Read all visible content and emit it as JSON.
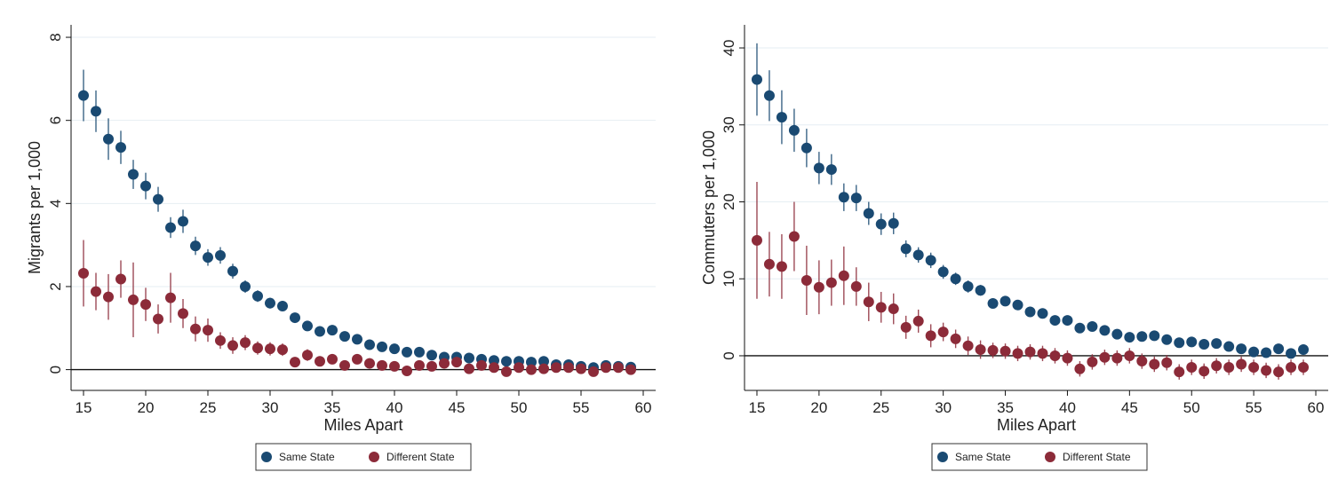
{
  "colors": {
    "same_state": "#1a4a72",
    "different_state": "#8c2b39",
    "grid": "#e6eef3"
  },
  "chart_data": [
    {
      "type": "scatter",
      "title": "",
      "xlabel": "Miles Apart",
      "ylabel": "Migrants per 1,000",
      "xlim": [
        14,
        61
      ],
      "ylim": [
        -0.5,
        8.3
      ],
      "x_ticks": [
        15,
        20,
        25,
        30,
        35,
        40,
        45,
        50,
        55,
        60
      ],
      "y_ticks": [
        0,
        2,
        4,
        6,
        8
      ],
      "grid": true,
      "legend": "bottom",
      "error_bars": true,
      "x": [
        15,
        16,
        17,
        18,
        19,
        20,
        21,
        22,
        23,
        24,
        25,
        26,
        27,
        28,
        29,
        30,
        31,
        32,
        33,
        34,
        35,
        36,
        37,
        38,
        39,
        40,
        41,
        42,
        43,
        44,
        45,
        46,
        47,
        48,
        49,
        50,
        51,
        52,
        53,
        54,
        55,
        56,
        57,
        58,
        59
      ],
      "series": [
        {
          "name": "Same State",
          "color": "#1a4a72",
          "values": [
            6.6,
            6.22,
            5.55,
            5.35,
            4.7,
            4.42,
            4.1,
            3.42,
            3.57,
            2.98,
            2.7,
            2.75,
            2.37,
            2.0,
            1.77,
            1.6,
            1.53,
            1.25,
            1.05,
            0.92,
            0.95,
            0.8,
            0.73,
            0.6,
            0.55,
            0.5,
            0.42,
            0.42,
            0.35,
            0.3,
            0.3,
            0.28,
            0.25,
            0.22,
            0.2,
            0.2,
            0.18,
            0.2,
            0.12,
            0.12,
            0.08,
            0.05,
            0.1,
            0.08,
            0.06
          ],
          "errors": [
            0.62,
            0.5,
            0.5,
            0.4,
            0.35,
            0.32,
            0.3,
            0.25,
            0.28,
            0.22,
            0.2,
            0.2,
            0.18,
            0.15,
            0.14,
            0.13,
            0.12,
            0.1,
            0.1,
            0.08,
            0.08,
            0.08,
            0.07,
            0.06,
            0.06,
            0.05,
            0.05,
            0.05,
            0.05,
            0.04,
            0.04,
            0.04,
            0.04,
            0.04,
            0.04,
            0.04,
            0.03,
            0.03,
            0.03,
            0.03,
            0.03,
            0.03,
            0.03,
            0.03,
            0.03
          ]
        },
        {
          "name": "Different State",
          "color": "#8c2b39",
          "values": [
            2.32,
            1.88,
            1.75,
            2.18,
            1.68,
            1.57,
            1.22,
            1.73,
            1.35,
            0.98,
            0.95,
            0.7,
            0.58,
            0.65,
            0.52,
            0.5,
            0.48,
            0.18,
            0.35,
            0.2,
            0.25,
            0.1,
            0.25,
            0.15,
            0.1,
            0.08,
            -0.03,
            0.1,
            0.08,
            0.15,
            0.18,
            0.02,
            0.1,
            0.05,
            -0.05,
            0.05,
            0.0,
            0.02,
            0.05,
            0.05,
            0.02,
            -0.05,
            0.05,
            0.05,
            0.0
          ],
          "errors": [
            0.8,
            0.45,
            0.55,
            0.45,
            0.9,
            0.4,
            0.35,
            0.6,
            0.35,
            0.3,
            0.28,
            0.2,
            0.2,
            0.18,
            0.16,
            0.16,
            0.15,
            0.12,
            0.14,
            0.12,
            0.12,
            0.12,
            0.12,
            0.12,
            0.12,
            0.12,
            0.1,
            0.1,
            0.1,
            0.1,
            0.1,
            0.08,
            0.08,
            0.08,
            0.08,
            0.08,
            0.08,
            0.08,
            0.08,
            0.08,
            0.08,
            0.08,
            0.08,
            0.08,
            0.08
          ]
        }
      ]
    },
    {
      "type": "scatter",
      "title": "",
      "xlabel": "Miles Apart",
      "ylabel": "Commuters per 1,000",
      "xlim": [
        14,
        61
      ],
      "ylim": [
        -4.5,
        43
      ],
      "x_ticks": [
        15,
        20,
        25,
        30,
        35,
        40,
        45,
        50,
        55,
        60
      ],
      "y_ticks": [
        0,
        10,
        20,
        30,
        40
      ],
      "grid": true,
      "legend": "bottom",
      "error_bars": true,
      "x": [
        15,
        16,
        17,
        18,
        19,
        20,
        21,
        22,
        23,
        24,
        25,
        26,
        27,
        28,
        29,
        30,
        31,
        32,
        33,
        34,
        35,
        36,
        37,
        38,
        39,
        40,
        41,
        42,
        43,
        44,
        45,
        46,
        47,
        48,
        49,
        50,
        51,
        52,
        53,
        54,
        55,
        56,
        57,
        58,
        59
      ],
      "series": [
        {
          "name": "Same State",
          "color": "#1a4a72",
          "values": [
            35.9,
            33.8,
            31.0,
            29.3,
            27.0,
            24.4,
            24.2,
            20.6,
            20.5,
            18.5,
            17.1,
            17.2,
            13.9,
            13.1,
            12.4,
            10.9,
            10.0,
            9.0,
            8.5,
            6.8,
            7.1,
            6.6,
            5.7,
            5.5,
            4.6,
            4.6,
            3.6,
            3.8,
            3.3,
            2.8,
            2.4,
            2.5,
            2.6,
            2.1,
            1.7,
            1.8,
            1.5,
            1.6,
            1.2,
            0.9,
            0.5,
            0.4,
            0.9,
            0.3,
            0.8
          ],
          "errors": [
            4.7,
            3.3,
            3.5,
            2.8,
            2.5,
            2.1,
            2.0,
            1.8,
            1.7,
            1.5,
            1.4,
            1.4,
            1.1,
            1.0,
            1.0,
            0.9,
            0.8,
            0.8,
            0.7,
            0.6,
            0.6,
            0.6,
            0.5,
            0.5,
            0.5,
            0.4,
            0.4,
            0.4,
            0.4,
            0.4,
            0.4,
            0.4,
            0.4,
            0.3,
            0.3,
            0.3,
            0.3,
            0.3,
            0.3,
            0.3,
            0.3,
            0.3,
            0.3,
            0.3,
            0.3
          ]
        },
        {
          "name": "Different State",
          "color": "#8c2b39",
          "values": [
            15.0,
            11.9,
            11.6,
            15.5,
            9.8,
            8.9,
            9.5,
            10.4,
            9.0,
            7.0,
            6.3,
            6.1,
            3.7,
            4.5,
            2.6,
            3.1,
            2.2,
            1.3,
            0.8,
            0.7,
            0.6,
            0.3,
            0.5,
            0.3,
            0.0,
            -0.3,
            -1.7,
            -0.8,
            -0.2,
            -0.3,
            0.0,
            -0.7,
            -1.1,
            -0.9,
            -2.1,
            -1.5,
            -2.0,
            -1.3,
            -1.5,
            -1.1,
            -1.5,
            -1.9,
            -2.1,
            -1.5,
            -1.5
          ],
          "errors": [
            7.6,
            4.2,
            4.2,
            4.5,
            4.5,
            3.5,
            3.0,
            3.8,
            2.5,
            2.5,
            2.0,
            2.0,
            1.5,
            1.5,
            1.5,
            1.2,
            1.2,
            1.2,
            1.2,
            1.0,
            1.0,
            1.0,
            1.0,
            1.0,
            1.0,
            1.0,
            1.0,
            1.0,
            1.0,
            1.0,
            1.0,
            1.0,
            1.0,
            1.0,
            1.0,
            1.0,
            1.0,
            1.0,
            1.0,
            1.0,
            1.0,
            1.0,
            1.0,
            1.0,
            1.0
          ]
        }
      ]
    }
  ]
}
